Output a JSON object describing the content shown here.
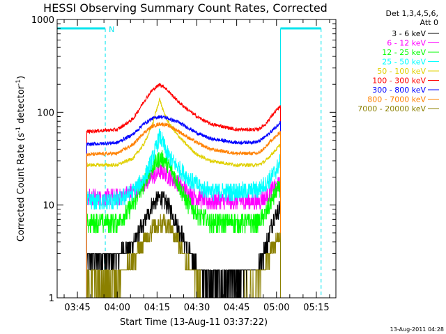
{
  "chart_data": {
    "type": "line",
    "title": "HESSI Observing Summary Count Rates, Corrected",
    "xlabel": "Start Time (13-Aug-11 03:37:22)",
    "ylabel_main": "Corrected Count Rate (s",
    "ylabel_sup1": "-1",
    "ylabel_mid": " detector",
    "ylabel_sup2": "-1",
    "ylabel_end": ")",
    "x_ticks": [
      "03:45",
      "04:00",
      "04:15",
      "04:30",
      "04:45",
      "05:00",
      "05:15"
    ],
    "x_tick_minutes": [
      225,
      240,
      255,
      270,
      285,
      300,
      315
    ],
    "xlim_minutes": [
      217.37,
      322.37
    ],
    "y_scale": "log",
    "ylim": [
      1,
      1000
    ],
    "y_ticks": [
      "1",
      "10",
      "100",
      "1000"
    ],
    "legend_header": [
      "Det 1,3,4,5,6,",
      "Att 0"
    ],
    "data_start_minutes": 228.5,
    "data_end_minutes": 301.5,
    "night_marker": {
      "label": "N",
      "color": "#00e5ee",
      "bars": [
        [
          217.37,
          235.5
        ],
        [
          301.5,
          316.8
        ]
      ],
      "bar_level": 800,
      "lines_minutes": [
        235.5,
        301.5,
        316.8
      ]
    },
    "series": [
      {
        "name": "3 - 6 keV",
        "color": "#000000",
        "x": [
          228.5,
          240,
          246,
          250,
          253,
          256,
          258,
          260,
          263,
          266,
          270,
          272,
          275,
          285,
          293,
          296,
          298,
          300,
          301.5
        ],
        "y": [
          2.7,
          2.7,
          4,
          6,
          10,
          12,
          11,
          9,
          6,
          3.5,
          2.2,
          1.8,
          1.5,
          1.5,
          2.2,
          3.5,
          6,
          8,
          10
        ]
      },
      {
        "name": "6 - 12 keV",
        "color": "#ff00ff",
        "x": [
          228.5,
          240,
          246,
          250,
          253,
          256,
          258,
          260,
          263,
          266,
          270,
          275,
          285,
          293,
          296,
          298,
          300,
          301.5
        ],
        "y": [
          12,
          12,
          14,
          17,
          20,
          23,
          22,
          20,
          17,
          14,
          12,
          11,
          11,
          11,
          12,
          14,
          16,
          17
        ]
      },
      {
        "name": "12 - 25 keV",
        "color": "#00ff00",
        "x": [
          228.5,
          240,
          246,
          250,
          253,
          256,
          258,
          260,
          263,
          266,
          270,
          275,
          285,
          293,
          296,
          298,
          300,
          301.5
        ],
        "y": [
          6.5,
          6.5,
          10,
          17,
          25,
          32,
          30,
          25,
          17,
          11,
          8,
          6.5,
          6.5,
          6.5,
          8,
          11,
          14,
          16
        ]
      },
      {
        "name": "25 - 50 keV",
        "color": "#00ffff",
        "x": [
          228.5,
          240,
          246,
          250,
          253,
          255,
          256,
          257,
          259,
          262,
          265,
          268,
          272,
          277,
          285,
          293,
          296,
          298,
          300,
          301.5
        ],
        "y": [
          11,
          11,
          14,
          19,
          30,
          45,
          55,
          48,
          35,
          27,
          22,
          18,
          15,
          14,
          14,
          14.5,
          17,
          20,
          24,
          30
        ]
      },
      {
        "name": "50 - 100 keV",
        "color": "#e0d000",
        "x": [
          228.5,
          240,
          246,
          250,
          253,
          255,
          256,
          257,
          259,
          262,
          266,
          270,
          275,
          285,
          293,
          296,
          298,
          300,
          301.5
        ],
        "y": [
          27,
          27,
          32,
          45,
          70,
          110,
          140,
          110,
          80,
          60,
          45,
          35,
          30,
          27,
          27,
          30,
          35,
          40,
          45
        ]
      },
      {
        "name": "100 - 300 keV",
        "color": "#ff0000",
        "x": [
          228.5,
          240,
          246,
          250,
          253,
          256,
          258,
          260,
          263,
          266,
          270,
          275,
          285,
          293,
          296,
          298,
          300,
          301.5
        ],
        "y": [
          62,
          65,
          85,
          130,
          170,
          200,
          185,
          160,
          130,
          110,
          90,
          75,
          65,
          65,
          75,
          90,
          105,
          115
        ]
      },
      {
        "name": "300 - 800 keV",
        "color": "#0000ff",
        "x": [
          228.5,
          240,
          246,
          250,
          253,
          256,
          258,
          260,
          263,
          266,
          270,
          275,
          285,
          293,
          296,
          298,
          300,
          301.5
        ],
        "y": [
          45,
          47,
          58,
          75,
          85,
          90,
          88,
          84,
          78,
          70,
          60,
          52,
          47,
          48,
          55,
          62,
          70,
          80
        ]
      },
      {
        "name": "800 - 7000 keV",
        "color": "#ff8000",
        "x": [
          228.5,
          240,
          246,
          250,
          253,
          256,
          258,
          260,
          263,
          266,
          270,
          275,
          285,
          293,
          296,
          298,
          300,
          301.5
        ],
        "y": [
          35,
          36,
          45,
          60,
          70,
          75,
          74,
          70,
          63,
          55,
          47,
          40,
          36,
          36,
          42,
          50,
          55,
          62
        ]
      },
      {
        "name": "7000 - 20000 keV",
        "color": "#8b8000",
        "x": [
          228.5,
          240,
          246,
          250,
          253,
          256,
          258,
          260,
          263,
          266,
          270,
          272,
          275,
          285,
          293,
          296,
          298,
          300,
          301.5
        ],
        "y": [
          1.6,
          1.6,
          2.5,
          4,
          5.5,
          6.5,
          6.5,
          5.5,
          4,
          2.5,
          1.6,
          1.2,
          1.1,
          1.1,
          1.5,
          2.2,
          3.2,
          4,
          4.5
        ]
      }
    ]
  },
  "timestamp": "13-Aug-2011 04:28"
}
